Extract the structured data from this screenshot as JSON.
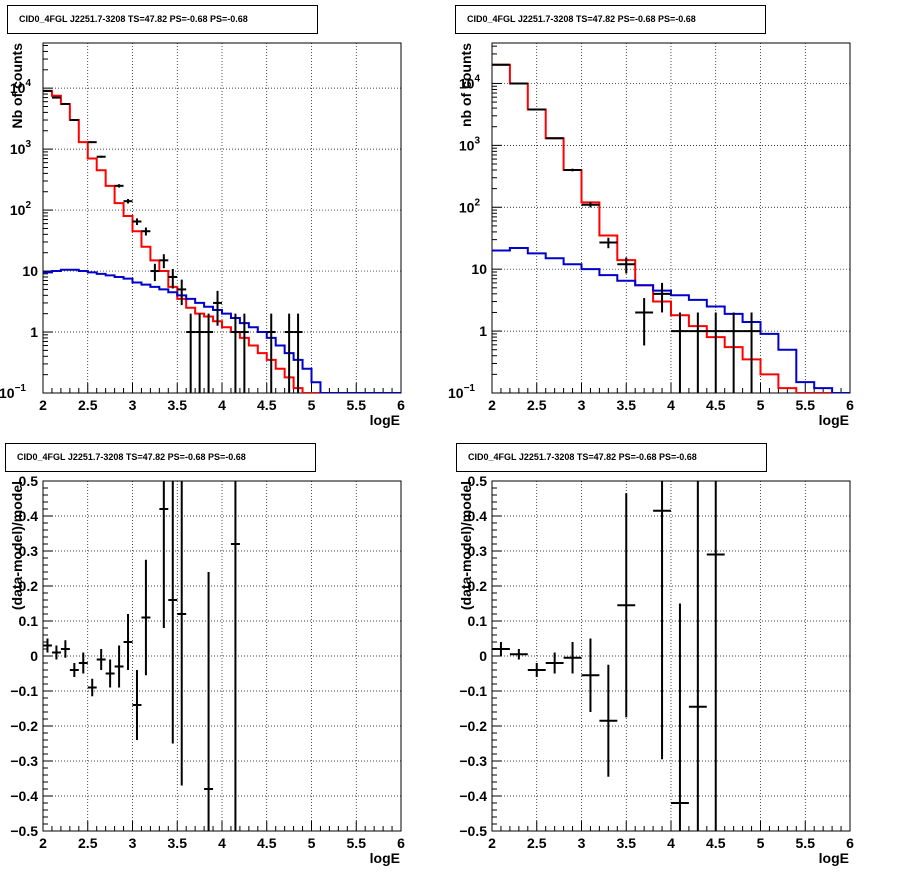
{
  "colors": {
    "data": "#000000",
    "total_model": "#ff0000",
    "background_model": "#0000cc",
    "grid": "#000000"
  },
  "chart_data": [
    {
      "id": "top-left",
      "type": "line",
      "title": "CID0_4FGL J2251.7-3208 TS=47.82 PS=-0.68 PS=-0.68",
      "xlabel": "logE",
      "ylabel": "Nb of counts",
      "xlim": [
        2,
        6
      ],
      "ylim": [
        0.1,
        55000
      ],
      "yscale": "log",
      "grid": true,
      "x_ticks": [
        "2",
        "2.5",
        "3",
        "3.5",
        "4",
        "4.5",
        "5",
        "5.5",
        "6"
      ],
      "y_ticks": [
        {
          "value": 0.1,
          "label": "10",
          "exp": "−1"
        },
        {
          "value": 1,
          "label": "1",
          "exp": ""
        },
        {
          "value": 10,
          "label": "10",
          "exp": ""
        },
        {
          "value": 100,
          "label": "10",
          "exp": "2"
        },
        {
          "value": 1000,
          "label": "10",
          "exp": "3"
        },
        {
          "value": 10000,
          "label": "10",
          "exp": "4"
        }
      ],
      "bin_width": 0.1,
      "series": [
        {
          "style": "total",
          "bin_start": 2.0,
          "values": [
            9000,
            7500,
            5500,
            3000,
            1300,
            700,
            450,
            250,
            130,
            80,
            45,
            25,
            15,
            10,
            5.5,
            3.5,
            2.5,
            2.0,
            1.8,
            1.5,
            1.2,
            1.0,
            0.8,
            0.6,
            0.45,
            0.35,
            0.25,
            0.18,
            0.12,
            0.1,
            0.1,
            0.1,
            0.1,
            0.1,
            0.1,
            0.1,
            0.1,
            0.1,
            0.1,
            0.1
          ]
        },
        {
          "style": "background",
          "bin_start": 2.0,
          "values": [
            9.5,
            10,
            10.5,
            10.5,
            10,
            9.5,
            9,
            8.5,
            8,
            7.5,
            6.5,
            6,
            5.5,
            5,
            4.5,
            4,
            3.5,
            3,
            2.6,
            2.3,
            2.0,
            1.7,
            1.4,
            1.2,
            1.0,
            0.8,
            0.6,
            0.45,
            0.35,
            0.25,
            0.15,
            0.1,
            0.1,
            0.1,
            0.1,
            0.1,
            0.1,
            0.1,
            0.1,
            0.1
          ]
        }
      ],
      "points": [
        {
          "x": 2.05,
          "y": 9000
        },
        {
          "x": 2.15,
          "y": 7000
        },
        {
          "x": 2.25,
          "y": 5500
        },
        {
          "x": 2.35,
          "y": 3000
        },
        {
          "x": 2.55,
          "y": 1300
        },
        {
          "x": 2.65,
          "y": 750
        },
        {
          "x": 2.85,
          "y": 250
        },
        {
          "x": 2.95,
          "y": 140
        },
        {
          "x": 3.05,
          "y": 65
        },
        {
          "x": 3.15,
          "y": 45
        },
        {
          "x": 3.25,
          "y": 10
        },
        {
          "x": 3.35,
          "y": 15
        },
        {
          "x": 3.45,
          "y": 8
        },
        {
          "x": 3.55,
          "y": 5
        },
        {
          "x": 3.65,
          "y": 1
        },
        {
          "x": 3.75,
          "y": 1
        },
        {
          "x": 3.85,
          "y": 1
        },
        {
          "x": 3.95,
          "y": 3
        },
        {
          "x": 4.15,
          "y": 1
        },
        {
          "x": 4.25,
          "y": 1
        },
        {
          "x": 4.55,
          "y": 1
        },
        {
          "x": 4.75,
          "y": 1
        },
        {
          "x": 4.85,
          "y": 1
        }
      ]
    },
    {
      "id": "top-right",
      "type": "line",
      "title": "CID0_4FGL J2251.7-3208 TS=47.82 PS=-0.68 PS=-0.68",
      "xlabel": "logE",
      "ylabel": "nb of counts",
      "xlim": [
        2,
        6
      ],
      "ylim": [
        0.1,
        45000
      ],
      "yscale": "log",
      "grid": true,
      "x_ticks": [
        "2",
        "2.5",
        "3",
        "3.5",
        "4",
        "4.5",
        "5",
        "5.5",
        "6"
      ],
      "y_ticks": [
        {
          "value": 0.1,
          "label": "10",
          "exp": "−1"
        },
        {
          "value": 1,
          "label": "1",
          "exp": ""
        },
        {
          "value": 10,
          "label": "10",
          "exp": ""
        },
        {
          "value": 100,
          "label": "10",
          "exp": "2"
        },
        {
          "value": 1000,
          "label": "10",
          "exp": "3"
        },
        {
          "value": 10000,
          "label": "10",
          "exp": "4"
        }
      ],
      "bin_width": 0.2,
      "series": [
        {
          "style": "total",
          "bin_start": 2.0,
          "values": [
            20000,
            10000,
            3800,
            1300,
            400,
            120,
            35,
            14,
            5.5,
            3,
            1.8,
            1.2,
            0.8,
            0.55,
            0.35,
            0.2,
            0.12,
            0.1,
            0.1,
            0.1
          ]
        },
        {
          "style": "background",
          "bin_start": 2.0,
          "values": [
            20,
            22,
            18,
            15,
            12,
            10,
            8,
            6.5,
            5.5,
            4.5,
            3.8,
            3.2,
            2.5,
            1.9,
            1.4,
            0.9,
            0.5,
            0.15,
            0.12,
            0.1
          ]
        }
      ],
      "points": [
        {
          "x": 2.1,
          "y": 20000
        },
        {
          "x": 2.3,
          "y": 10000
        },
        {
          "x": 2.5,
          "y": 3800
        },
        {
          "x": 2.7,
          "y": 1300
        },
        {
          "x": 2.9,
          "y": 400
        },
        {
          "x": 3.1,
          "y": 110
        },
        {
          "x": 3.3,
          "y": 27
        },
        {
          "x": 3.5,
          "y": 12
        },
        {
          "x": 3.7,
          "y": 2
        },
        {
          "x": 3.9,
          "y": 4
        },
        {
          "x": 4.1,
          "y": 1
        },
        {
          "x": 4.3,
          "y": 1
        },
        {
          "x": 4.5,
          "y": 1
        },
        {
          "x": 4.7,
          "y": 1
        },
        {
          "x": 4.9,
          "y": 1
        }
      ]
    },
    {
      "id": "bottom-left",
      "type": "scatter",
      "title": "CID0_4FGL J2251.7-3208 TS=47.82 PS=-0.68 PS=-0.68",
      "xlabel": "logE",
      "ylabel": "(data-model)/model",
      "xlim": [
        2,
        6
      ],
      "ylim": [
        -0.5,
        0.5
      ],
      "yscale": "linear",
      "grid": true,
      "x_ticks": [
        "2",
        "2.5",
        "3",
        "3.5",
        "4",
        "4.5",
        "5",
        "5.5",
        "6"
      ],
      "y_ticks": [
        {
          "value": -0.5,
          "label": "−0.5"
        },
        {
          "value": -0.4,
          "label": "−0.4"
        },
        {
          "value": -0.3,
          "label": "−0.3"
        },
        {
          "value": -0.2,
          "label": "−0.2"
        },
        {
          "value": -0.1,
          "label": "−0.1"
        },
        {
          "value": 0,
          "label": "0"
        },
        {
          "value": 0.1,
          "label": "0.1"
        },
        {
          "value": 0.2,
          "label": "0.2"
        },
        {
          "value": 0.3,
          "label": "0.3"
        },
        {
          "value": 0.4,
          "label": "0.4"
        },
        {
          "value": 0.5,
          "label": "0.5"
        }
      ],
      "points": [
        {
          "x": 2.05,
          "y": 0.03,
          "err": 0.02,
          "xerr": 0.05
        },
        {
          "x": 2.15,
          "y": 0.01,
          "err": 0.02,
          "xerr": 0.05
        },
        {
          "x": 2.25,
          "y": 0.02,
          "err": 0.025,
          "xerr": 0.05
        },
        {
          "x": 2.35,
          "y": -0.04,
          "err": 0.02,
          "xerr": 0.05
        },
        {
          "x": 2.45,
          "y": -0.02,
          "err": 0.03,
          "xerr": 0.05
        },
        {
          "x": 2.55,
          "y": -0.09,
          "err": 0.025,
          "xerr": 0.05
        },
        {
          "x": 2.65,
          "y": -0.01,
          "err": 0.03,
          "xerr": 0.05
        },
        {
          "x": 2.75,
          "y": -0.05,
          "err": 0.04,
          "xerr": 0.05
        },
        {
          "x": 2.85,
          "y": -0.03,
          "err": 0.06,
          "xerr": 0.05
        },
        {
          "x": 2.95,
          "y": 0.04,
          "err": 0.08,
          "xerr": 0.05
        },
        {
          "x": 3.05,
          "y": -0.14,
          "err": 0.1,
          "xerr": 0.05
        },
        {
          "x": 3.15,
          "y": 0.11,
          "err": 0.165,
          "xerr": 0.05
        },
        {
          "x": 3.35,
          "y": 0.42,
          "err": 0.34,
          "xerr": 0.05
        },
        {
          "x": 3.45,
          "y": 0.16,
          "err": 0.41,
          "xerr": 0.05
        },
        {
          "x": 3.55,
          "y": 0.12,
          "err": 0.49,
          "xerr": 0.05
        },
        {
          "x": 3.85,
          "y": -0.38,
          "err": 0.62,
          "xerr": 0.05
        },
        {
          "x": 4.15,
          "y": 0.32,
          "err": 1.0,
          "xerr": 0.05
        }
      ]
    },
    {
      "id": "bottom-right",
      "type": "scatter",
      "title": "CID0_4FGL J2251.7-3208 TS=47.82 PS=-0.68 PS=-0.68",
      "xlabel": "logE",
      "ylabel": "(data-model)/model",
      "xlim": [
        2,
        6
      ],
      "ylim": [
        -0.5,
        0.5
      ],
      "yscale": "linear",
      "grid": true,
      "x_ticks": [
        "2",
        "2.5",
        "3",
        "3.5",
        "4",
        "4.5",
        "5",
        "5.5",
        "6"
      ],
      "y_ticks": [
        {
          "value": -0.5,
          "label": "−0.5"
        },
        {
          "value": -0.4,
          "label": "−0.4"
        },
        {
          "value": -0.3,
          "label": "−0.3"
        },
        {
          "value": -0.2,
          "label": "−0.2"
        },
        {
          "value": -0.1,
          "label": "−0.1"
        },
        {
          "value": 0,
          "label": "0"
        },
        {
          "value": 0.1,
          "label": "0.1"
        },
        {
          "value": 0.2,
          "label": "0.2"
        },
        {
          "value": 0.3,
          "label": "0.3"
        },
        {
          "value": 0.4,
          "label": "0.4"
        },
        {
          "value": 0.5,
          "label": "0.5"
        }
      ],
      "points": [
        {
          "x": 2.1,
          "y": 0.02,
          "err": 0.02,
          "xerr": 0.1
        },
        {
          "x": 2.3,
          "y": 0.005,
          "err": 0.015,
          "xerr": 0.1
        },
        {
          "x": 2.5,
          "y": -0.04,
          "err": 0.02,
          "xerr": 0.1
        },
        {
          "x": 2.7,
          "y": -0.02,
          "err": 0.03,
          "xerr": 0.1
        },
        {
          "x": 2.9,
          "y": -0.005,
          "err": 0.045,
          "xerr": 0.1
        },
        {
          "x": 3.1,
          "y": -0.055,
          "err": 0.105,
          "xerr": 0.1
        },
        {
          "x": 3.3,
          "y": -0.185,
          "err": 0.16,
          "xerr": 0.1
        },
        {
          "x": 3.5,
          "y": 0.145,
          "err": 0.32,
          "xerr": 0.1
        },
        {
          "x": 3.9,
          "y": 0.415,
          "err": 0.71,
          "xerr": 0.1
        },
        {
          "x": 4.1,
          "y": -0.42,
          "err": 0.57,
          "xerr": 0.1
        },
        {
          "x": 4.3,
          "y": -0.145,
          "err": 0.9,
          "xerr": 0.1
        },
        {
          "x": 4.5,
          "y": 0.29,
          "err": 0.9,
          "xerr": 0.1
        }
      ]
    }
  ]
}
